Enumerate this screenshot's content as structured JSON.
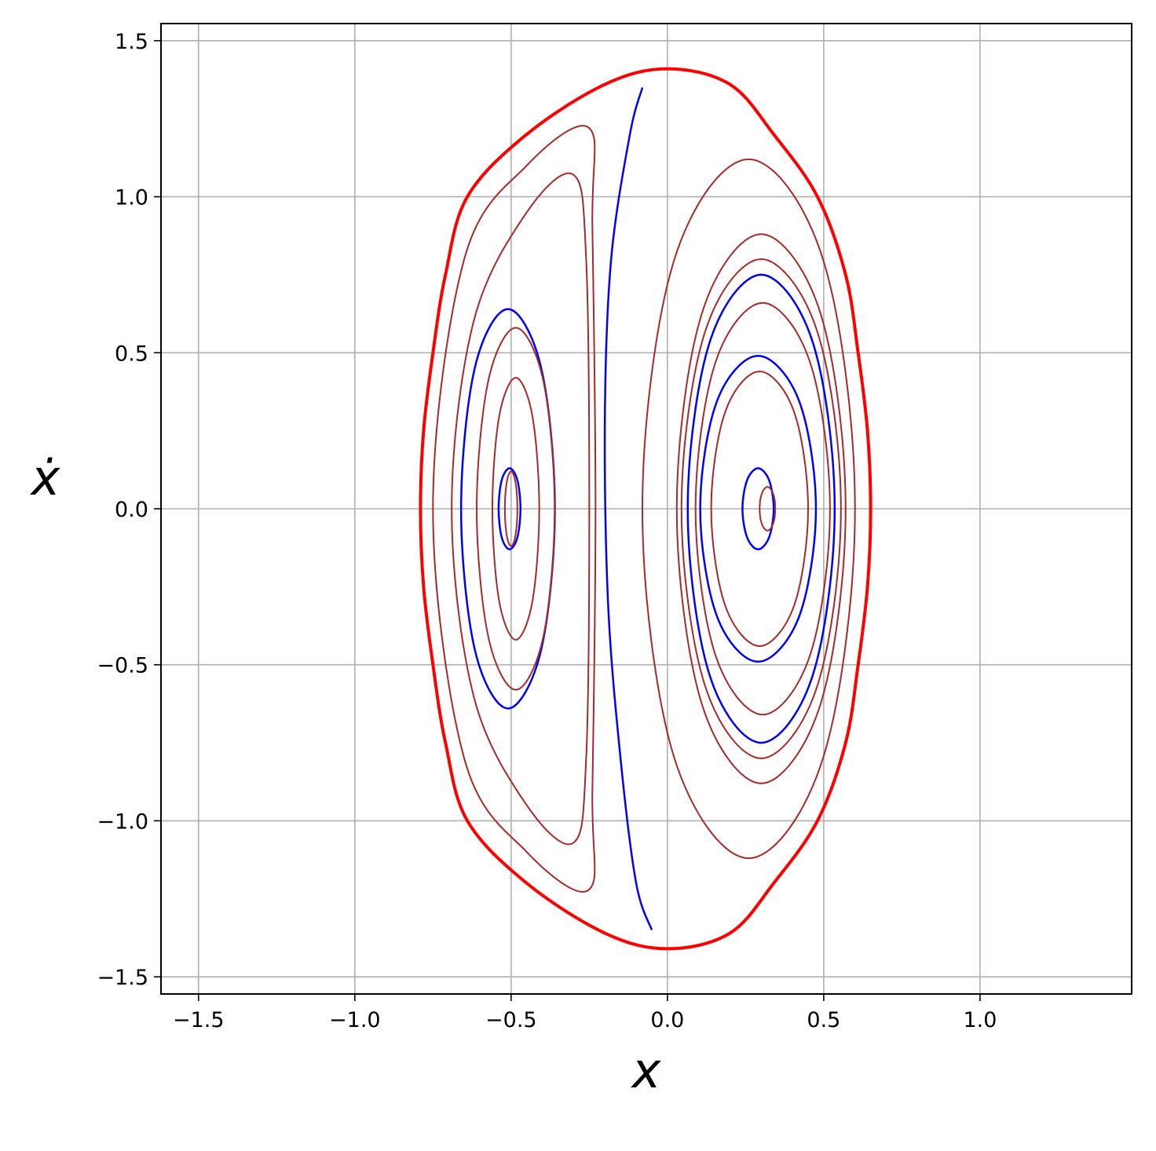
{
  "chart_data": {
    "type": "line",
    "xlabel": "x",
    "ylabel": "ẋ",
    "xlim": [
      -1.62,
      1.485
    ],
    "ylim": [
      -1.555,
      1.555
    ],
    "grid": true,
    "xticks": [
      {
        "value": -1.5,
        "label": "−1.5"
      },
      {
        "value": -1.0,
        "label": "−1.0"
      },
      {
        "value": -0.5,
        "label": "−0.5"
      },
      {
        "value": 0,
        "label": "0.0"
      },
      0.5,
      {
        "value": 1.0,
        "label": "1.0"
      }
    ],
    "yticks": [
      {
        "value": -1.5,
        "label": "−1.5"
      },
      {
        "value": -1.0,
        "label": "−1.0"
      },
      {
        "value": -0.5,
        "label": "−0.5"
      },
      {
        "value": 0,
        "label": "0.0"
      },
      0.5,
      {
        "value": 1.0,
        "label": "1.0"
      },
      1.5
    ],
    "series": [
      {
        "color": "#0000ff",
        "linewidth": 2.5,
        "closed": false,
        "x": [
          -0.08,
          -0.12,
          -0.18,
          -0.2,
          -0.19,
          -0.15,
          -0.1,
          -0.05
        ],
        "values": [
          1.35,
          1.2,
          0.8,
          0.3,
          -0.3,
          -0.8,
          -1.2,
          -1.35
        ]
      },
      {
        "color": "#0000ff",
        "linewidth": 2.5,
        "closed": true,
        "x": [
          -0.47,
          -0.48,
          -0.505,
          -0.53,
          -0.54,
          -0.53,
          -0.505,
          -0.48
        ],
        "values": [
          0,
          0.092,
          0.13,
          0.092,
          0,
          -0.092,
          -0.13,
          -0.092
        ]
      },
      {
        "color": "#0000ff",
        "linewidth": 2.5,
        "closed": true,
        "x": [
          -0.36,
          -0.404,
          -0.51,
          -0.616,
          -0.66,
          -0.616,
          -0.51,
          -0.404
        ],
        "values": [
          0,
          0.452,
          0.64,
          0.452,
          0,
          -0.452,
          -0.64,
          -0.452
        ]
      },
      {
        "color": "#0000ff",
        "linewidth": 2.5,
        "closed": true,
        "x": [
          0.34,
          0.325,
          0.29,
          0.255,
          0.24,
          0.255,
          0.29,
          0.325
        ],
        "values": [
          0,
          0.092,
          0.13,
          0.092,
          0,
          -0.092,
          -0.13,
          -0.092
        ]
      },
      {
        "color": "#0000ff",
        "linewidth": 2.5,
        "closed": true,
        "x": [
          0.475,
          0.421,
          0.29,
          0.159,
          0.105,
          0.159,
          0.29,
          0.421
        ],
        "values": [
          0,
          0.346,
          0.49,
          0.346,
          0,
          -0.346,
          -0.49,
          -0.346
        ]
      },
      {
        "color": "#0000ff",
        "linewidth": 2.5,
        "closed": true,
        "x": [
          0.535,
          0.466,
          0.3,
          0.134,
          0.065,
          0.134,
          0.3,
          0.466
        ],
        "values": [
          0,
          0.53,
          0.75,
          0.53,
          0,
          -0.53,
          -0.75,
          -0.53
        ]
      },
      {
        "color": "#a52a2a",
        "linewidth": 2,
        "closed": true,
        "x": [
          -0.48,
          -0.486,
          -0.5,
          -0.514,
          -0.52,
          -0.514,
          -0.5,
          -0.486
        ],
        "values": [
          0,
          0.085,
          0.12,
          0.085,
          0,
          -0.085,
          -0.12,
          -0.085
        ]
      },
      {
        "color": "#a52a2a",
        "linewidth": 2,
        "closed": true,
        "x": [
          -0.41,
          -0.432,
          -0.485,
          -0.538,
          -0.56,
          -0.538,
          -0.485,
          -0.432
        ],
        "values": [
          0,
          0.297,
          0.42,
          0.297,
          0,
          -0.297,
          -0.42,
          -0.297
        ]
      },
      {
        "color": "#a52a2a",
        "linewidth": 2,
        "closed": true,
        "x": [
          -0.36,
          -0.397,
          -0.485,
          -0.573,
          -0.61,
          -0.573,
          -0.485,
          -0.397
        ],
        "values": [
          0,
          0.41,
          0.58,
          0.41,
          0,
          -0.41,
          -0.58,
          -0.41
        ]
      },
      {
        "color": "#a52a2a",
        "linewidth": 2,
        "closed": true,
        "x": [
          -0.25,
          -0.26,
          -0.3,
          -0.45,
          -0.62,
          -0.69,
          -0.62,
          -0.45,
          -0.3,
          -0.26
        ],
        "values": [
          0,
          0.8,
          1.07,
          0.95,
          0.6,
          0,
          -0.6,
          -0.95,
          -1.07,
          -0.8
        ]
      },
      {
        "color": "#a52a2a",
        "linewidth": 2,
        "closed": true,
        "x": [
          -0.23,
          -0.24,
          -0.25,
          -0.45,
          -0.65,
          -0.75,
          -0.65,
          -0.45,
          -0.25,
          -0.24
        ],
        "values": [
          0,
          0.9,
          1.22,
          1.1,
          0.8,
          0,
          -0.8,
          -1.1,
          -1.22,
          -0.9
        ]
      },
      {
        "color": "#a52a2a",
        "linewidth": 2,
        "closed": true,
        "x": [
          0.345,
          0.338,
          0.32,
          0.302,
          0.295,
          0.302,
          0.32,
          0.338
        ],
        "values": [
          0,
          0.049,
          0.07,
          0.049,
          0,
          -0.049,
          -0.07,
          -0.049
        ]
      },
      {
        "color": "#a52a2a",
        "linewidth": 2,
        "closed": true,
        "x": [
          0.45,
          0.405,
          0.295,
          0.185,
          0.14,
          0.185,
          0.295,
          0.405
        ],
        "values": [
          0,
          0.311,
          0.44,
          0.311,
          0,
          -0.311,
          -0.44,
          -0.311
        ]
      },
      {
        "color": "#a52a2a",
        "linewidth": 2,
        "closed": true,
        "x": [
          0.52,
          0.457,
          0.305,
          0.153,
          0.09,
          0.153,
          0.305,
          0.457
        ],
        "values": [
          0,
          0.467,
          0.66,
          0.467,
          0,
          -0.467,
          -0.66,
          -0.467
        ]
      },
      {
        "color": "#a52a2a",
        "linewidth": 2,
        "closed": true,
        "x": [
          0.555,
          0.48,
          0.3,
          0.12,
          0.045,
          0.12,
          0.3,
          0.48
        ],
        "values": [
          0,
          0.566,
          0.8,
          0.566,
          0,
          -0.566,
          -0.8,
          -0.566
        ]
      },
      {
        "color": "#a52a2a",
        "linewidth": 2,
        "closed": true,
        "x": [
          0.57,
          0.491,
          0.3,
          0.109,
          0.03,
          0.109,
          0.3,
          0.491
        ],
        "values": [
          0,
          0.622,
          0.88,
          0.622,
          0,
          -0.622,
          -0.88,
          -0.622
        ]
      },
      {
        "color": "#a52a2a",
        "linewidth": 2,
        "closed": true,
        "x": [
          0.6,
          0.5,
          0.26,
          0.02,
          -0.08,
          0.02,
          0.26,
          0.5
        ],
        "values": [
          0,
          0.792,
          1.12,
          0.792,
          0,
          -0.792,
          -1.12,
          -0.792
        ]
      },
      {
        "color": "#ff0000",
        "linewidth": 4,
        "closed": true,
        "x": [
          0,
          0.2,
          0.34,
          0.48,
          0.57,
          0.61,
          0.64,
          0.65,
          0.64,
          0.61,
          0.57,
          0.48,
          0.34,
          0.2,
          0,
          -0.2,
          -0.45,
          -0.64,
          -0.71,
          -0.75,
          -0.78,
          -0.79,
          -0.78,
          -0.75,
          -0.71,
          -0.64,
          -0.45,
          -0.2
        ],
        "values": [
          1.41,
          1.36,
          1.2,
          1.0,
          0.75,
          0.5,
          0.25,
          0,
          -0.25,
          -0.5,
          -0.75,
          -1.0,
          -1.2,
          -1.36,
          -1.41,
          -1.36,
          -1.2,
          -1.0,
          -0.75,
          -0.5,
          -0.25,
          0,
          0.25,
          0.5,
          0.75,
          1.0,
          1.2,
          1.36
        ]
      }
    ]
  }
}
